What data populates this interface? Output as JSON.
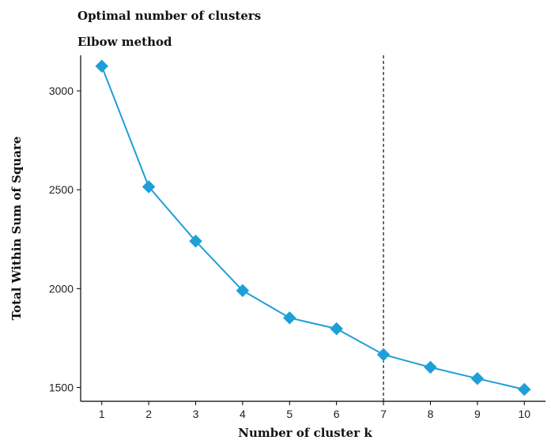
{
  "chart_data": {
    "type": "line",
    "title": "Optimal number of clusters",
    "subtitle": "Elbow method",
    "xlabel": "Number of cluster  k",
    "ylabel": "Total Within Sum of Square",
    "x": [
      1,
      2,
      3,
      4,
      5,
      6,
      7,
      8,
      9,
      10
    ],
    "series": [
      {
        "values": [
          3125,
          2515,
          2240,
          1990,
          1852,
          1797,
          1666,
          1602,
          1545,
          1490
        ]
      }
    ],
    "xticks": [
      "1",
      "2",
      "3",
      "4",
      "5",
      "6",
      "7",
      "8",
      "9",
      "10"
    ],
    "yticks": [
      1500,
      2000,
      2500,
      3000
    ],
    "xlim": [
      0.55,
      10.45
    ],
    "ylim": [
      1430,
      3180
    ],
    "vline_x": 7,
    "grid": false,
    "line_color": "#1f9fd8",
    "marker": "diamond"
  }
}
